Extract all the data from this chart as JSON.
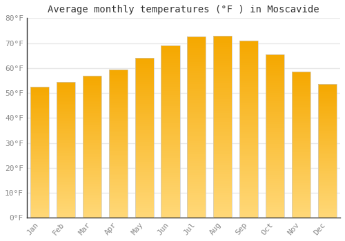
{
  "title": "Average monthly temperatures (°F ) in Moscavide",
  "months": [
    "Jan",
    "Feb",
    "Mar",
    "Apr",
    "May",
    "Jun",
    "Jul",
    "Aug",
    "Sep",
    "Oct",
    "Nov",
    "Dec"
  ],
  "values": [
    52.5,
    54.5,
    57.0,
    59.5,
    64.0,
    69.0,
    72.5,
    73.0,
    71.0,
    65.5,
    58.5,
    53.5
  ],
  "bar_color_top": "#F5A800",
  "bar_color_bottom": "#FFD878",
  "background_color": "#ffffff",
  "plot_bg_color": "#ffffff",
  "ylim": [
    0,
    80
  ],
  "yticks": [
    0,
    10,
    20,
    30,
    40,
    50,
    60,
    70,
    80
  ],
  "ytick_labels": [
    "0°F",
    "10°F",
    "20°F",
    "30°F",
    "40°F",
    "50°F",
    "60°F",
    "70°F",
    "80°F"
  ],
  "grid_color": "#e8e8e8",
  "title_fontsize": 10,
  "tick_fontsize": 8,
  "font_family": "monospace",
  "bar_width": 0.72,
  "bar_edge_color": "#cccccc",
  "bar_edge_width": 0.5
}
